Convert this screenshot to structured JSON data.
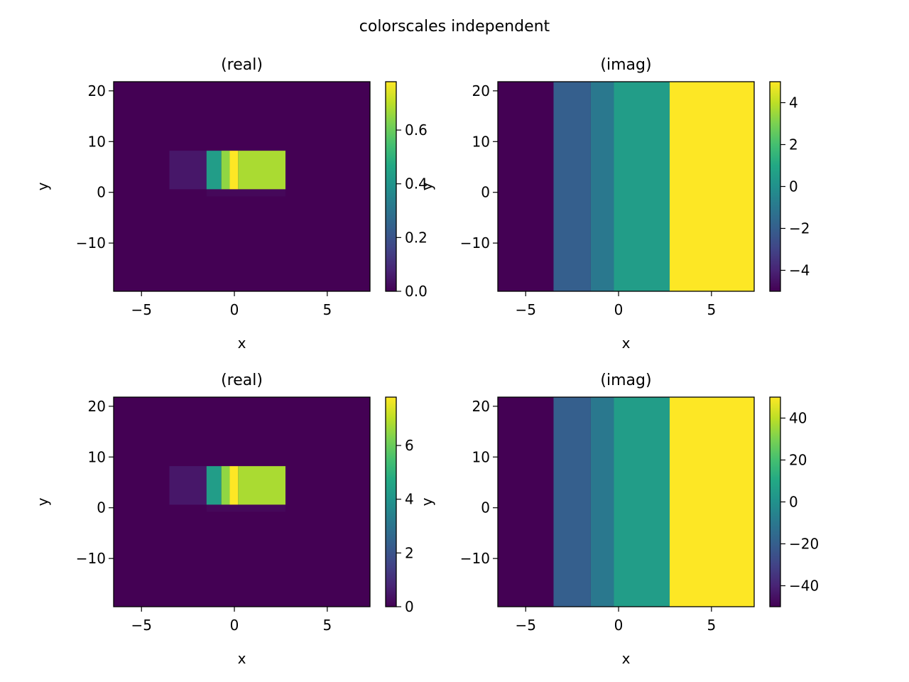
{
  "figure": {
    "title": "colorscales independent"
  },
  "chart_data": [
    {
      "type": "heatmap",
      "title": "(real)",
      "xlabel": "x",
      "ylabel": "y",
      "xlim": [
        -6.5,
        7.3
      ],
      "ylim": [
        -19.5,
        21.8
      ],
      "xticks": [
        -5,
        0,
        5
      ],
      "yticks": [
        -10,
        0,
        10,
        20
      ],
      "tick_labels_x": [
        "−5",
        "0",
        "5"
      ],
      "tick_labels_y": [
        "−10",
        "0",
        "10",
        "20"
      ],
      "colormap": "viridis",
      "background_value": 0.0,
      "clim": [
        0.0,
        0.78
      ],
      "colorbar_ticks": [
        0.0,
        0.2,
        0.4,
        0.6
      ],
      "colorbar_labels": [
        "0.0",
        "0.2",
        "0.4",
        "0.6"
      ],
      "cells": [
        {
          "x0": -3.5,
          "x1": -1.5,
          "y0": 0.6,
          "y1": 8.2,
          "value": 0.05
        },
        {
          "x0": -1.5,
          "x1": -0.7,
          "y0": 0.6,
          "y1": 8.2,
          "value": 0.43
        },
        {
          "x0": -0.7,
          "x1": -0.25,
          "y0": 0.6,
          "y1": 8.2,
          "value": 0.65
        },
        {
          "x0": -0.25,
          "x1": 0.2,
          "y0": 0.6,
          "y1": 8.2,
          "value": 0.78
        },
        {
          "x0": 0.2,
          "x1": 2.75,
          "y0": 0.6,
          "y1": 8.2,
          "value": 0.68
        },
        {
          "x0": -1.5,
          "x1": 2.75,
          "y0": -0.8,
          "y1": 0.6,
          "value": 0.015
        }
      ]
    },
    {
      "type": "heatmap",
      "title": "(imag)",
      "xlabel": "x",
      "ylabel": "y",
      "xlim": [
        -6.5,
        7.3
      ],
      "ylim": [
        -19.5,
        21.8
      ],
      "xticks": [
        -5,
        0,
        5
      ],
      "yticks": [
        -10,
        0,
        10,
        20
      ],
      "tick_labels_x": [
        "−5",
        "0",
        "5"
      ],
      "tick_labels_y": [
        "−10",
        "0",
        "10",
        "20"
      ],
      "colormap": "viridis",
      "background_value": -5,
      "clim": [
        -5.0,
        5.0
      ],
      "colorbar_ticks": [
        -4,
        -2,
        0,
        2,
        4
      ],
      "colorbar_labels": [
        "−4",
        "−2",
        "0",
        "2",
        "4"
      ],
      "cells": [
        {
          "x0": -3.5,
          "x1": -1.5,
          "y0": -19.5,
          "y1": 21.8,
          "value": -2.0
        },
        {
          "x0": -1.5,
          "x1": -0.25,
          "y0": -19.5,
          "y1": 21.8,
          "value": -1.0
        },
        {
          "x0": -0.25,
          "x1": 2.75,
          "y0": -19.5,
          "y1": 21.8,
          "value": 0.5
        },
        {
          "x0": 2.75,
          "x1": 7.3,
          "y0": -19.5,
          "y1": 21.8,
          "value": 5.0
        }
      ]
    },
    {
      "type": "heatmap",
      "title": "(real)",
      "xlabel": "x",
      "ylabel": "y",
      "xlim": [
        -6.5,
        7.3
      ],
      "ylim": [
        -19.5,
        21.8
      ],
      "xticks": [
        -5,
        0,
        5
      ],
      "yticks": [
        -10,
        0,
        10,
        20
      ],
      "tick_labels_x": [
        "−5",
        "0",
        "5"
      ],
      "tick_labels_y": [
        "−10",
        "0",
        "10",
        "20"
      ],
      "colormap": "viridis",
      "background_value": 0,
      "clim": [
        0,
        7.8
      ],
      "colorbar_ticks": [
        0,
        2,
        4,
        6
      ],
      "colorbar_labels": [
        "0",
        "2",
        "4",
        "6"
      ],
      "cells": [
        {
          "x0": -3.5,
          "x1": -1.5,
          "y0": 0.6,
          "y1": 8.2,
          "value": 0.5
        },
        {
          "x0": -1.5,
          "x1": -0.7,
          "y0": 0.6,
          "y1": 8.2,
          "value": 4.3
        },
        {
          "x0": -0.7,
          "x1": -0.25,
          "y0": 0.6,
          "y1": 8.2,
          "value": 6.5
        },
        {
          "x0": -0.25,
          "x1": 0.2,
          "y0": 0.6,
          "y1": 8.2,
          "value": 7.8
        },
        {
          "x0": 0.2,
          "x1": 2.75,
          "y0": 0.6,
          "y1": 8.2,
          "value": 6.8
        },
        {
          "x0": -1.5,
          "x1": 2.75,
          "y0": -0.8,
          "y1": 0.6,
          "value": 0.15
        }
      ]
    },
    {
      "type": "heatmap",
      "title": "(imag)",
      "xlabel": "x",
      "ylabel": "y",
      "xlim": [
        -6.5,
        7.3
      ],
      "ylim": [
        -19.5,
        21.8
      ],
      "xticks": [
        -5,
        0,
        5
      ],
      "yticks": [
        -10,
        0,
        10,
        20
      ],
      "tick_labels_x": [
        "−5",
        "0",
        "5"
      ],
      "tick_labels_y": [
        "−10",
        "0",
        "10",
        "20"
      ],
      "colormap": "viridis",
      "background_value": -50,
      "clim": [
        -50,
        50
      ],
      "colorbar_ticks": [
        -40,
        -20,
        0,
        20,
        40
      ],
      "colorbar_labels": [
        "−40",
        "−20",
        "0",
        "20",
        "40"
      ],
      "cells": [
        {
          "x0": -3.5,
          "x1": -1.5,
          "y0": -19.5,
          "y1": 21.8,
          "value": -20
        },
        {
          "x0": -1.5,
          "x1": -0.25,
          "y0": -19.5,
          "y1": 21.8,
          "value": -10
        },
        {
          "x0": -0.25,
          "x1": 2.75,
          "y0": -19.5,
          "y1": 21.8,
          "value": 5
        },
        {
          "x0": 2.75,
          "x1": 7.3,
          "y0": -19.5,
          "y1": 21.8,
          "value": 50
        }
      ]
    }
  ]
}
